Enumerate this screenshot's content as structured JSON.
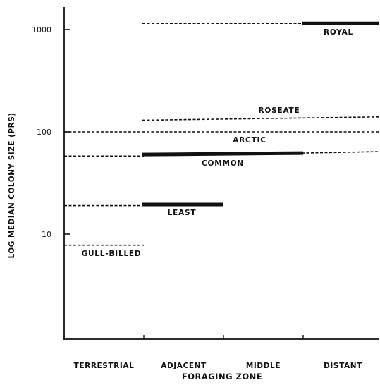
{
  "chart_data": {
    "type": "line",
    "ylabel": "LOG MEDIAN COLONY SIZE (PRS)",
    "xlabel": "FORAGING ZONE",
    "y_scale": "log",
    "ylim": [
      1,
      2000
    ],
    "yticks": [
      {
        "value": 10,
        "label": "10"
      },
      {
        "value": 100,
        "label": "100"
      },
      {
        "value": 1000,
        "label": "1000"
      }
    ],
    "categories": [
      "TERRESTRIAL",
      "ADJACENT",
      "MIDDLE",
      "DISTANT"
    ],
    "series": [
      {
        "name": "ROYAL",
        "segments": [
          {
            "from": 1,
            "to": 3,
            "style": "dashed",
            "y": 1150
          },
          {
            "from": 3,
            "to": 4,
            "style": "solid",
            "y": 1150
          }
        ]
      },
      {
        "name": "ROSEATE",
        "segments": [
          {
            "from": 1,
            "to": 4,
            "style": "dashed",
            "y": 130,
            "y_end": 140
          }
        ]
      },
      {
        "name": "ARCTIC",
        "segments": [
          {
            "from": 0,
            "to": 4,
            "style": "dashed",
            "y": 100
          }
        ]
      },
      {
        "name": "COMMON",
        "segments": [
          {
            "from": 0,
            "to": 1,
            "style": "dashed",
            "y": 58
          },
          {
            "from": 1,
            "to": 3,
            "style": "solid",
            "y": 60,
            "y_end": 62
          },
          {
            "from": 3,
            "to": 4,
            "style": "dashed",
            "y": 62,
            "y_end": 64
          }
        ]
      },
      {
        "name": "LEAST",
        "segments": [
          {
            "from": 0,
            "to": 1,
            "style": "dashed",
            "y": 19
          },
          {
            "from": 1,
            "to": 2,
            "style": "solid",
            "y": 19.5
          }
        ]
      },
      {
        "name": "GULL-BILLED",
        "segments": [
          {
            "from": 0,
            "to": 1,
            "style": "dashed",
            "y": 7.8
          }
        ]
      }
    ]
  }
}
